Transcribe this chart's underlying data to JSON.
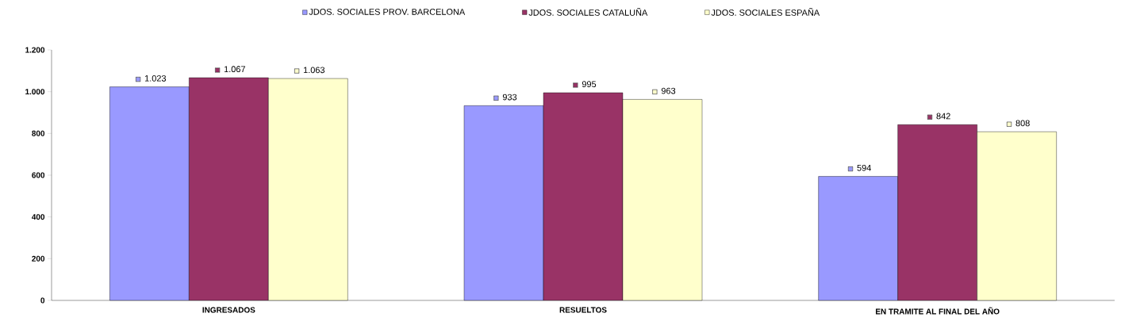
{
  "chart_data": {
    "type": "bar",
    "categories": [
      "INGRESADOS",
      "RESUELTOS",
      "EN TRAMITE AL FINAL DEL AÑO"
    ],
    "series": [
      {
        "name": "JDOS. SOCIALES PROV. BARCELONA",
        "color": "#9999ff",
        "values": [
          1023,
          933,
          594
        ],
        "value_labels": [
          "1.023",
          "933",
          "594"
        ]
      },
      {
        "name": "JDOS. SOCIALES CATALUÑA",
        "color": "#993366",
        "values": [
          1067,
          995,
          842
        ],
        "value_labels": [
          "1.067",
          "995",
          "842"
        ]
      },
      {
        "name": "JDOS. SOCIALES ESPAÑA",
        "color": "#ffffcc",
        "values": [
          1063,
          963,
          808
        ],
        "value_labels": [
          "1.063",
          "963",
          "808"
        ]
      }
    ],
    "ylim": [
      0,
      1200
    ],
    "yticks": [
      0,
      200,
      400,
      600,
      800,
      {
        "value": 1000,
        "label": "1.000"
      },
      {
        "value": 1200,
        "label": "1.200"
      }
    ],
    "grid": false,
    "legend": "top"
  }
}
